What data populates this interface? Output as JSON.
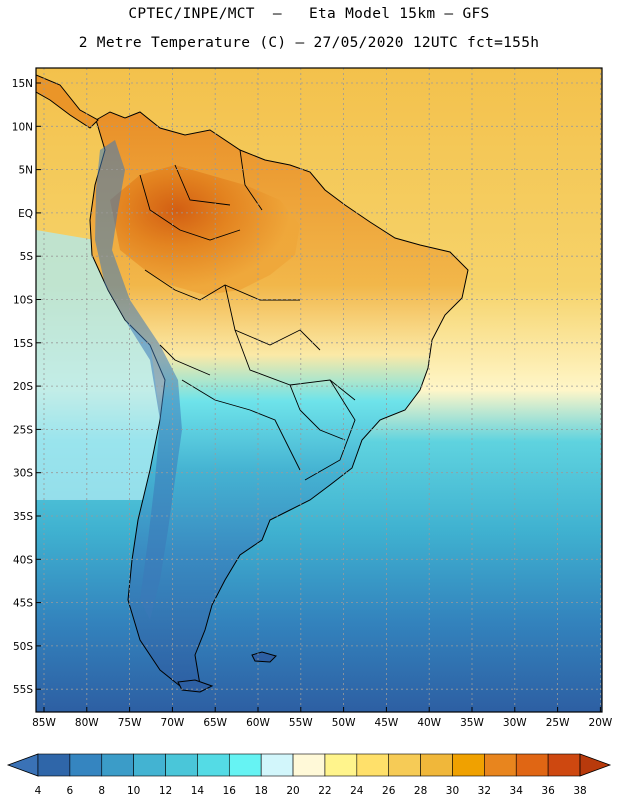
{
  "header": {
    "line1": "CPTEC/INPE/MCT  –   Eta Model 15km – GFS",
    "line2": "2 Metre Temperature (C) – 27/05/2020 12UTC fct=155h"
  },
  "map": {
    "lat_labels": [
      "15N",
      "10N",
      "5N",
      "EQ",
      "5S",
      "10S",
      "15S",
      "20S",
      "25S",
      "30S",
      "35S",
      "40S",
      "45S",
      "50S",
      "55S"
    ],
    "lon_labels": [
      "85W",
      "80W",
      "75W",
      "70W",
      "65W",
      "60W",
      "55W",
      "50W",
      "45W",
      "40W",
      "35W",
      "30W",
      "25W",
      "20W"
    ]
  },
  "colorbar": {
    "ticks": [
      "4",
      "6",
      "8",
      "10",
      "12",
      "14",
      "16",
      "18",
      "20",
      "22",
      "24",
      "26",
      "28",
      "30",
      "32",
      "34",
      "36",
      "38"
    ],
    "colors": [
      "#3a72b6",
      "#2f66a9",
      "#3585c0",
      "#3b9cc8",
      "#43b3d2",
      "#4ac6d9",
      "#54dbe5",
      "#66f3f3",
      "#d2f6fb",
      "#fff9d8",
      "#fff48c",
      "#ffe06a",
      "#f6cb56",
      "#f0b73a",
      "#f0a100",
      "#e8851e",
      "#e06614",
      "#ce4810",
      "#b83a0c"
    ]
  },
  "colors": {
    "land_border": "#000000",
    "grid": "#9a9a9a"
  }
}
